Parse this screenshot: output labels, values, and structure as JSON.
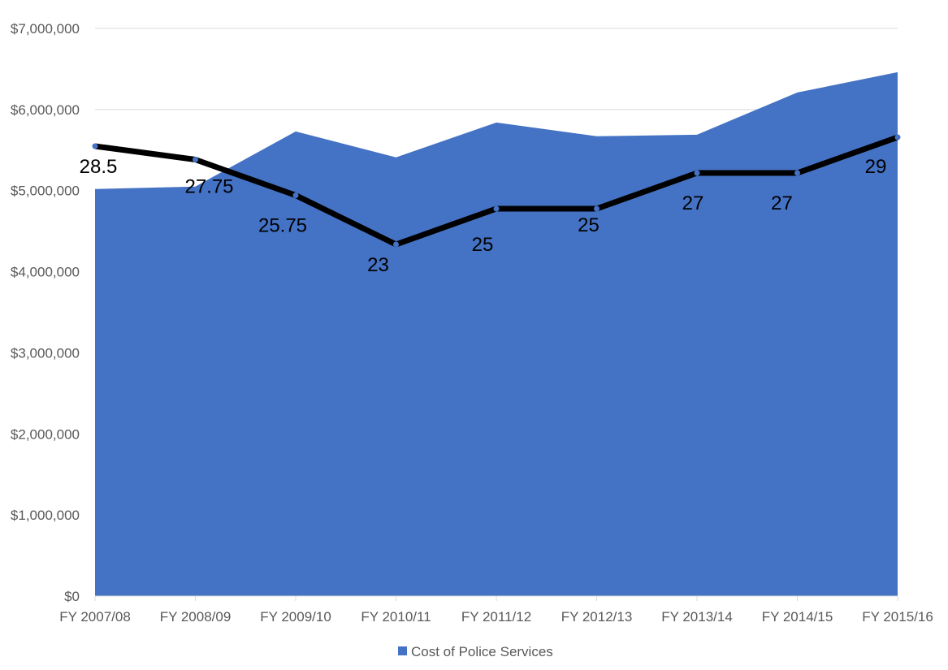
{
  "chart_data": {
    "type": "area+line",
    "title": "",
    "categories": [
      "FY 2007/08",
      "FY 2008/09",
      "FY 2009/10",
      "FY 2010/11",
      "FY 2011/12",
      "FY 2012/13",
      "FY 2013/14",
      "FY 2014/15",
      "FY 2015/16"
    ],
    "series": [
      {
        "name": "Cost of Police Services",
        "type": "area",
        "axis": "primary",
        "color": "#4472C4",
        "values": [
          5020000,
          5050000,
          5730000,
          5410000,
          5840000,
          5670000,
          5690000,
          6210000,
          6460000
        ]
      },
      {
        "name": "",
        "type": "line",
        "axis": "secondary",
        "color": "#000000",
        "marker_color": "#4472C4",
        "values": [
          28.5,
          27.75,
          25.75,
          23,
          25,
          25,
          27,
          27,
          29
        ],
        "data_labels": [
          "28.5",
          "27.75",
          "25.75",
          "23",
          "25",
          "25",
          "27",
          "27",
          "29"
        ]
      }
    ],
    "y_axis": {
      "ylim": [
        0,
        7000000
      ],
      "ticks": [
        0,
        1000000,
        2000000,
        3000000,
        4000000,
        5000000,
        6000000,
        7000000
      ],
      "tick_labels": [
        "$0",
        "$1,000,000",
        "$2,000,000",
        "$3,000,000",
        "$4,000,000",
        "$5,000,000",
        "$6,000,000",
        "$7,000,000"
      ],
      "label": ""
    },
    "xlabel": "",
    "ylabel": "",
    "grid": true,
    "legend": {
      "position": "bottom",
      "entries": [
        "Cost of Police Services"
      ]
    }
  },
  "legend": {
    "label": "Cost of Police Services"
  }
}
